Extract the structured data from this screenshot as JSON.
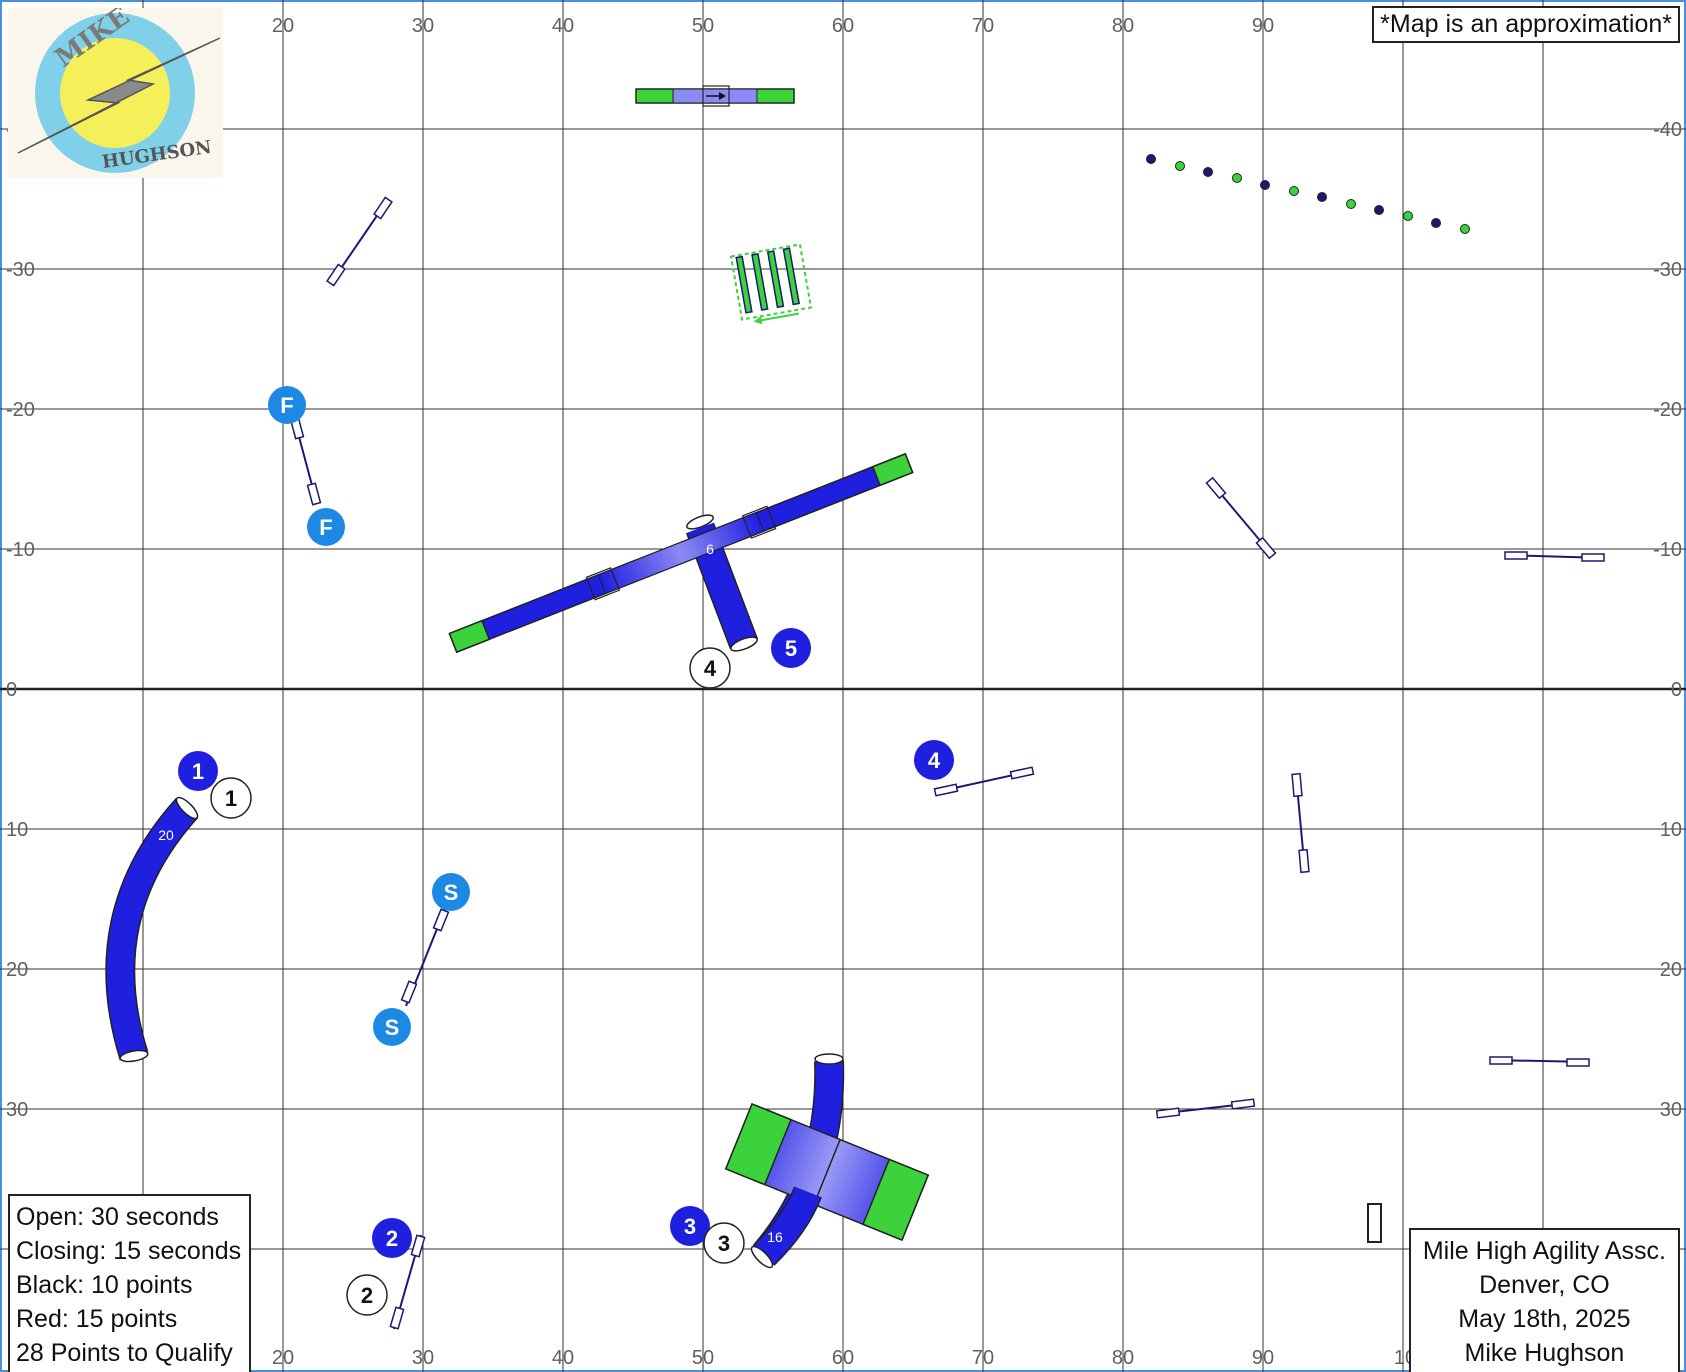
{
  "colors": {
    "frame": "#4a90d9",
    "tunnel": "#1f1fe0",
    "contact_zone": "#3cd23c",
    "jump_bar": "#1a1a70",
    "start_finish": "#1e88e5",
    "judge_number": "#1f1fe0",
    "handler_number": "#ffffff",
    "grid": "#333333"
  },
  "chart_data": {
    "type": "course-map",
    "x_ticks": [
      "10",
      "20",
      "30",
      "40",
      "50",
      "60",
      "70",
      "80",
      "90",
      "10"
    ],
    "y_ticks": [
      "-40",
      "-30",
      "-20",
      "-10",
      "0",
      "10",
      "20",
      "30"
    ],
    "blue_numbers": [
      "1",
      "2",
      "3",
      "4",
      "5"
    ],
    "white_numbers": [
      "1",
      "2",
      "3",
      "4"
    ],
    "start_marker": "S",
    "finish_marker": "F",
    "tunnel_labels": [
      "20",
      "16",
      "6"
    ]
  },
  "logo": {
    "top_text": "MIKE",
    "bottom_text": "HUGHSON"
  },
  "disclaimer": "*Map is an approximation*",
  "rules": [
    "Open: 30 seconds",
    "Closing: 15 seconds",
    "Black: 10 points",
    "Red: 15 points",
    "28 Points to Qualify"
  ],
  "club_info": [
    "Mile High Agility Assc.",
    "Denver, CO",
    "May 18th, 2025",
    "Mike Hughson"
  ]
}
